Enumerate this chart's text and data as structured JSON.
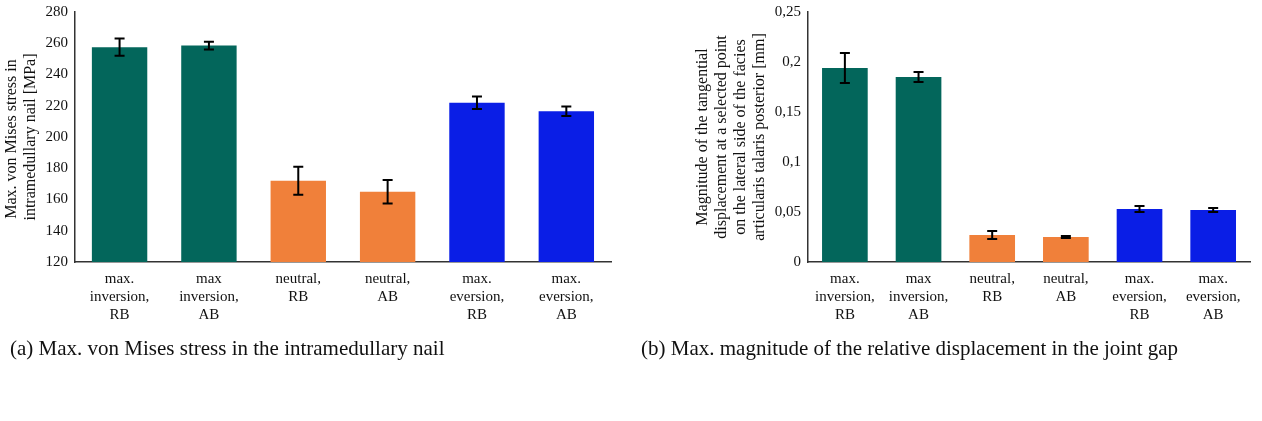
{
  "chart_data": [
    {
      "type": "bar",
      "ylabel": "Max. von Mises stress in  intramedullary nail [MPa]",
      "categories": [
        "max. inversion, RB",
        "max inversion, AB",
        "neutral, RB",
        "neutral, AB",
        "max. eversion, RB",
        "max. eversion, AB"
      ],
      "values": [
        257.5,
        258.5,
        172,
        165,
        222,
        216.5
      ],
      "errors": [
        5.5,
        2.5,
        9,
        7.5,
        4,
        3
      ],
      "colors": [
        "#03665b",
        "#03665b",
        "#f0803a",
        "#f0803a",
        "#0a1ee6",
        "#0a1ee6"
      ],
      "ylim": [
        120,
        280
      ],
      "yticks": [
        120,
        140,
        160,
        180,
        200,
        220,
        240,
        260,
        280
      ],
      "grid": false,
      "legend": false,
      "annotations": [
        "(a) Max. von Mises stress in the intramedullary nail"
      ]
    },
    {
      "type": "bar",
      "ylabel": "Magnitude of the tangential displacement at a selected point on the lateral side of the facies articularis talaris posterior [mm]",
      "categories": [
        "max. inversion, RB",
        "max inversion, AB",
        "neutral, RB",
        "neutral, AB",
        "max. eversion, RB",
        "max. eversion, AB"
      ],
      "values": [
        0.194,
        0.185,
        0.027,
        0.025,
        0.053,
        0.052
      ],
      "errors": [
        0.015,
        0.005,
        0.004,
        0.001,
        0.003,
        0.002
      ],
      "colors": [
        "#03665b",
        "#03665b",
        "#f0803a",
        "#f0803a",
        "#0a1ee6",
        "#0a1ee6"
      ],
      "ylim": [
        0,
        0.25
      ],
      "yticks": [
        {
          "value": 0,
          "label": "0"
        },
        {
          "value": 0.05,
          "label": "0,05"
        },
        {
          "value": 0.1,
          "label": "0,1"
        },
        {
          "value": 0.15,
          "label": "0,15"
        },
        {
          "value": 0.2,
          "label": "0,2"
        },
        {
          "value": 0.25,
          "label": "0,25"
        }
      ],
      "grid": false,
      "legend": false,
      "annotations": [
        "(b) Max. magnitude of the relative displacement in the joint gap"
      ]
    }
  ]
}
